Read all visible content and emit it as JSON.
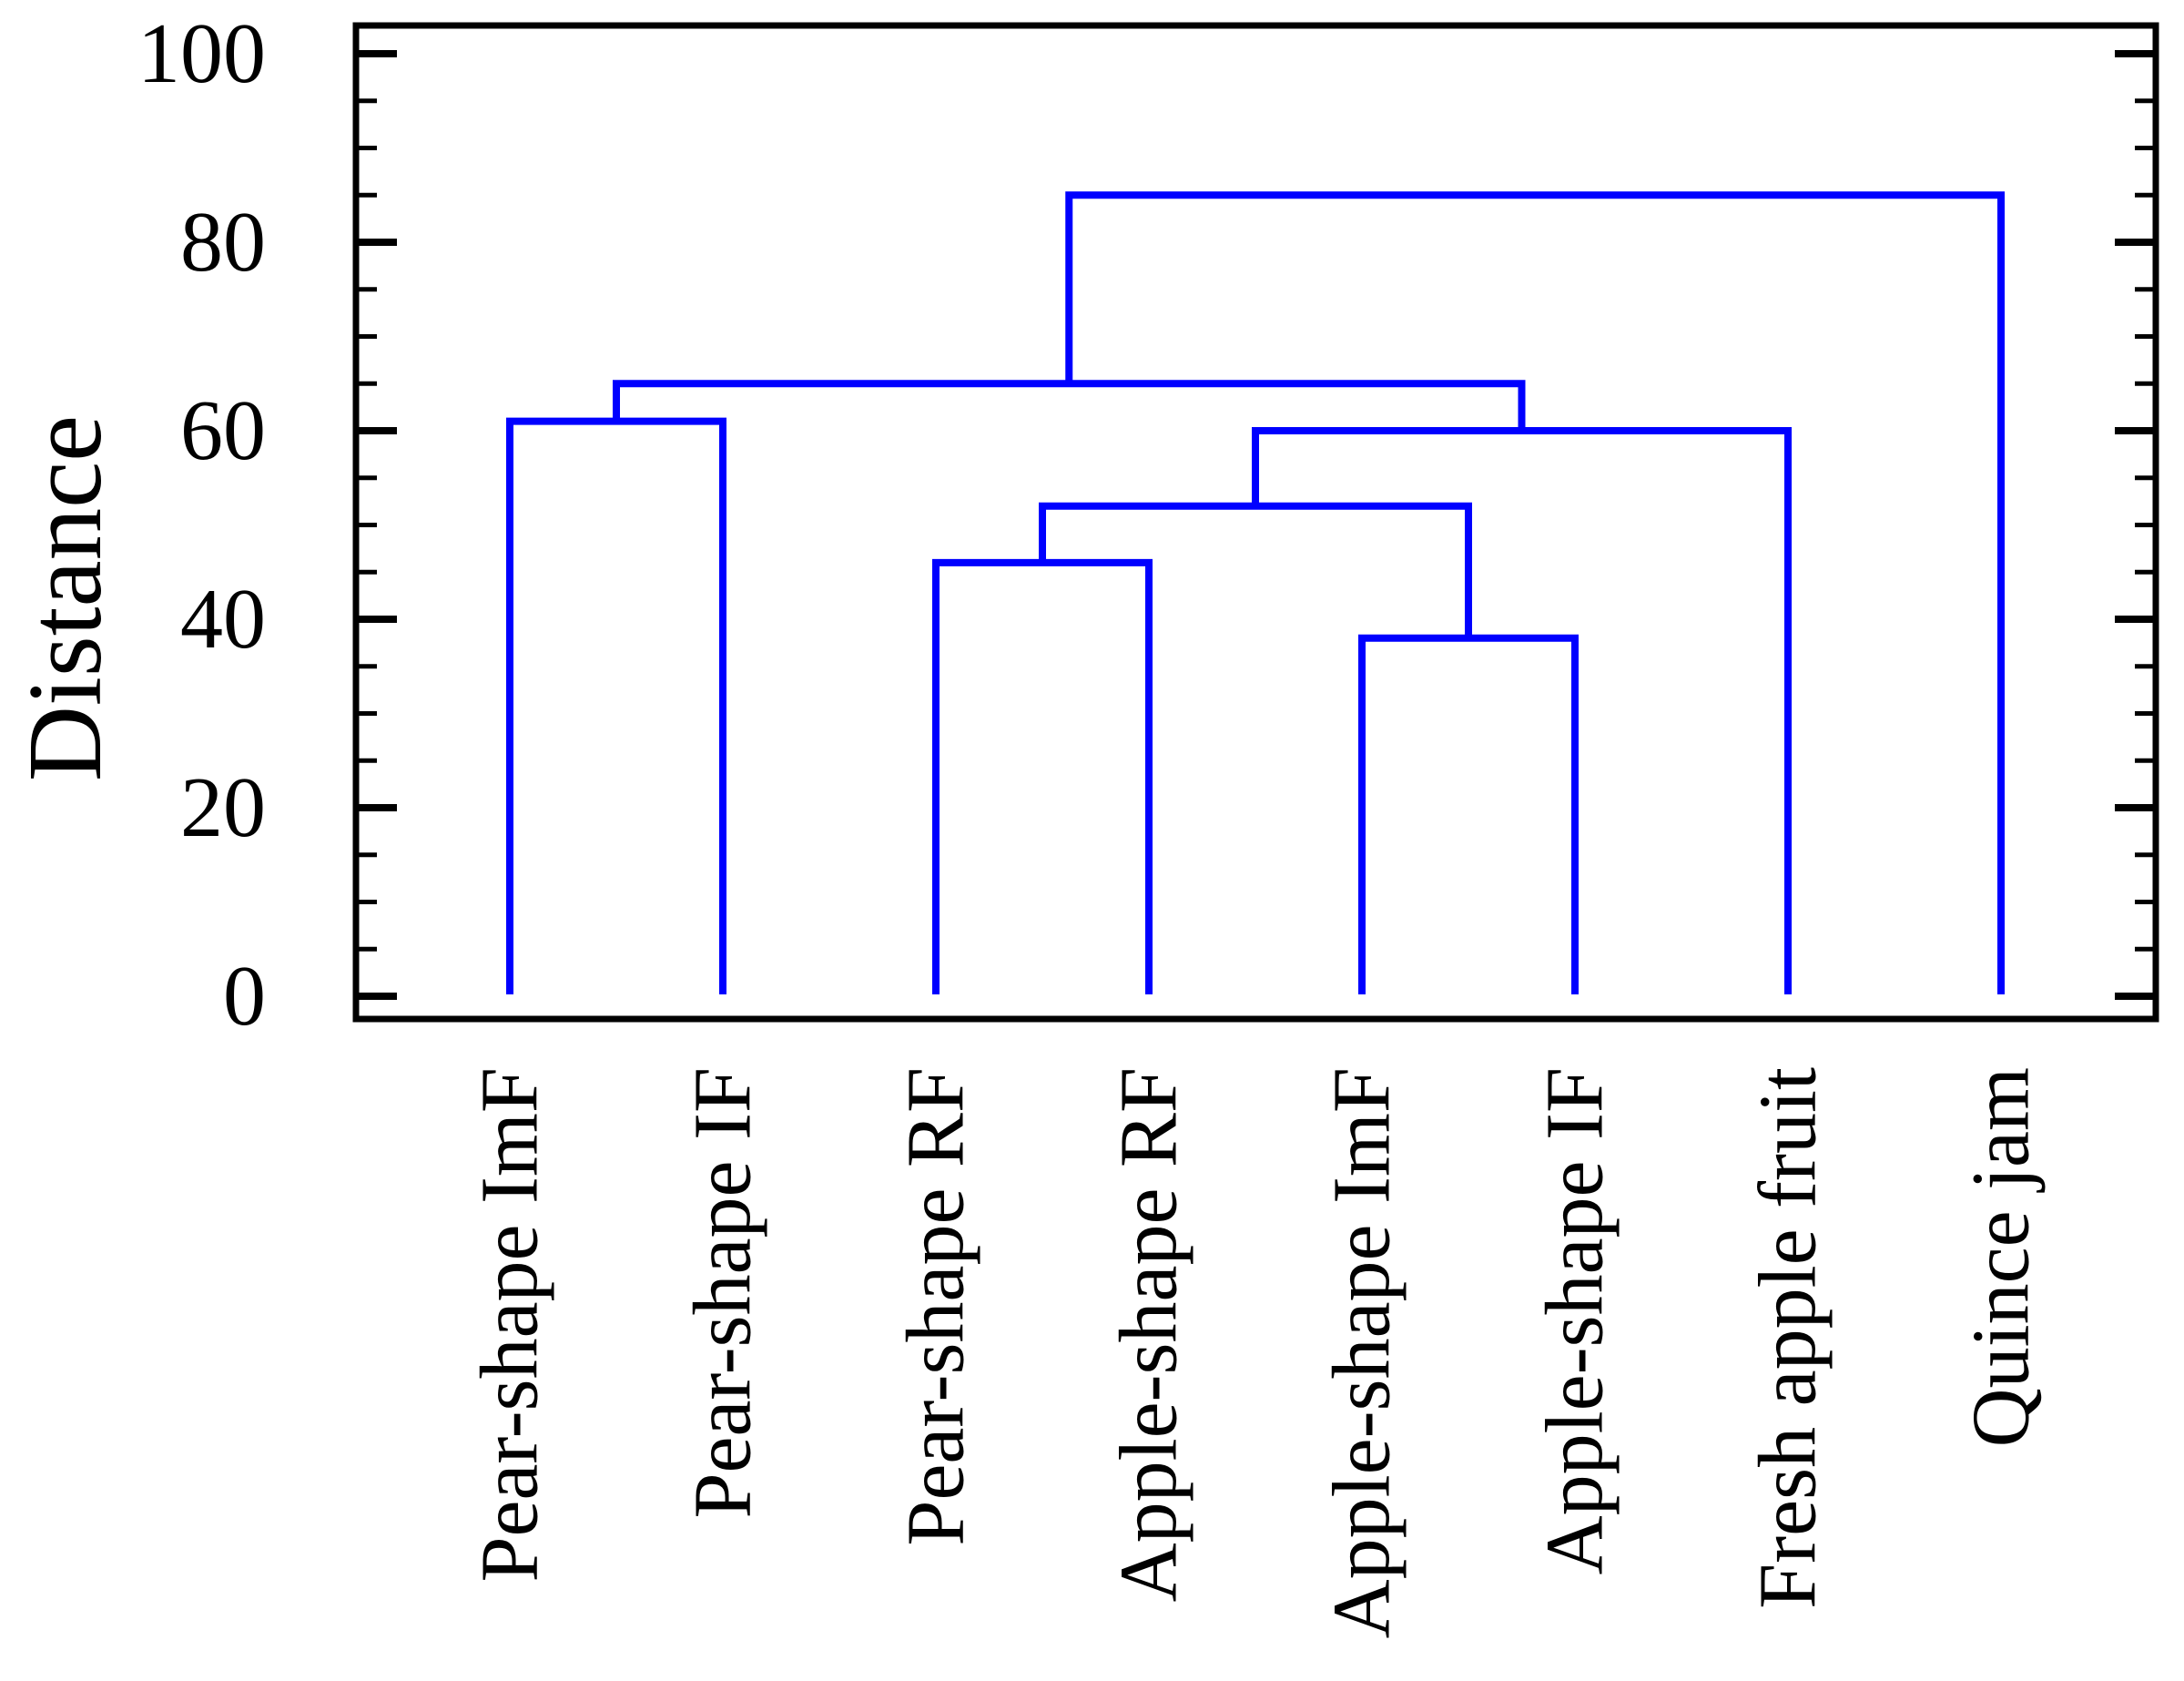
{
  "figure": {
    "background": "#ffffff",
    "frame_color": "#000000",
    "link_color": "#0000ff"
  },
  "axis": {
    "y_title": "Distance",
    "y_min": 0,
    "y_max": 100,
    "y_major_ticks": [
      "0",
      "20",
      "40",
      "60",
      "80",
      "100"
    ],
    "y_minor_step": 5
  },
  "chart_data": {
    "type": "dendrogram",
    "orientation": "vertical",
    "title": "",
    "xlabel": "",
    "ylabel": "Distance",
    "ylim": [
      0,
      100
    ],
    "ytick_major": [
      0,
      20,
      40,
      60,
      80,
      100
    ],
    "ytick_minor_step": 5,
    "grid": false,
    "legend": false,
    "line_color": "#0000ff",
    "leaves": [
      "Pear-shape ImF",
      "Pear-shape IF",
      "Pear-shape RF",
      "Apple-shape RF",
      "Apple-shape ImF",
      "Apple-shape IF",
      "Fresh apple fruit",
      "Quince jam"
    ],
    "merges": [
      {
        "id": "A",
        "members": [
          "Pear-shape ImF",
          "Pear-shape IF"
        ],
        "distance": 61
      },
      {
        "id": "B",
        "members": [
          "Pear-shape RF",
          "Apple-shape RF"
        ],
        "distance": 46
      },
      {
        "id": "C",
        "members": [
          "Apple-shape ImF",
          "Apple-shape IF"
        ],
        "distance": 38
      },
      {
        "id": "D",
        "members": [
          "B",
          "C"
        ],
        "distance": 52
      },
      {
        "id": "E",
        "members": [
          "D",
          "Fresh apple fruit"
        ],
        "distance": 60
      },
      {
        "id": "F",
        "members": [
          "A",
          "E"
        ],
        "distance": 65
      },
      {
        "id": "G",
        "members": [
          "F",
          "Quince jam"
        ],
        "distance": 85
      }
    ]
  }
}
